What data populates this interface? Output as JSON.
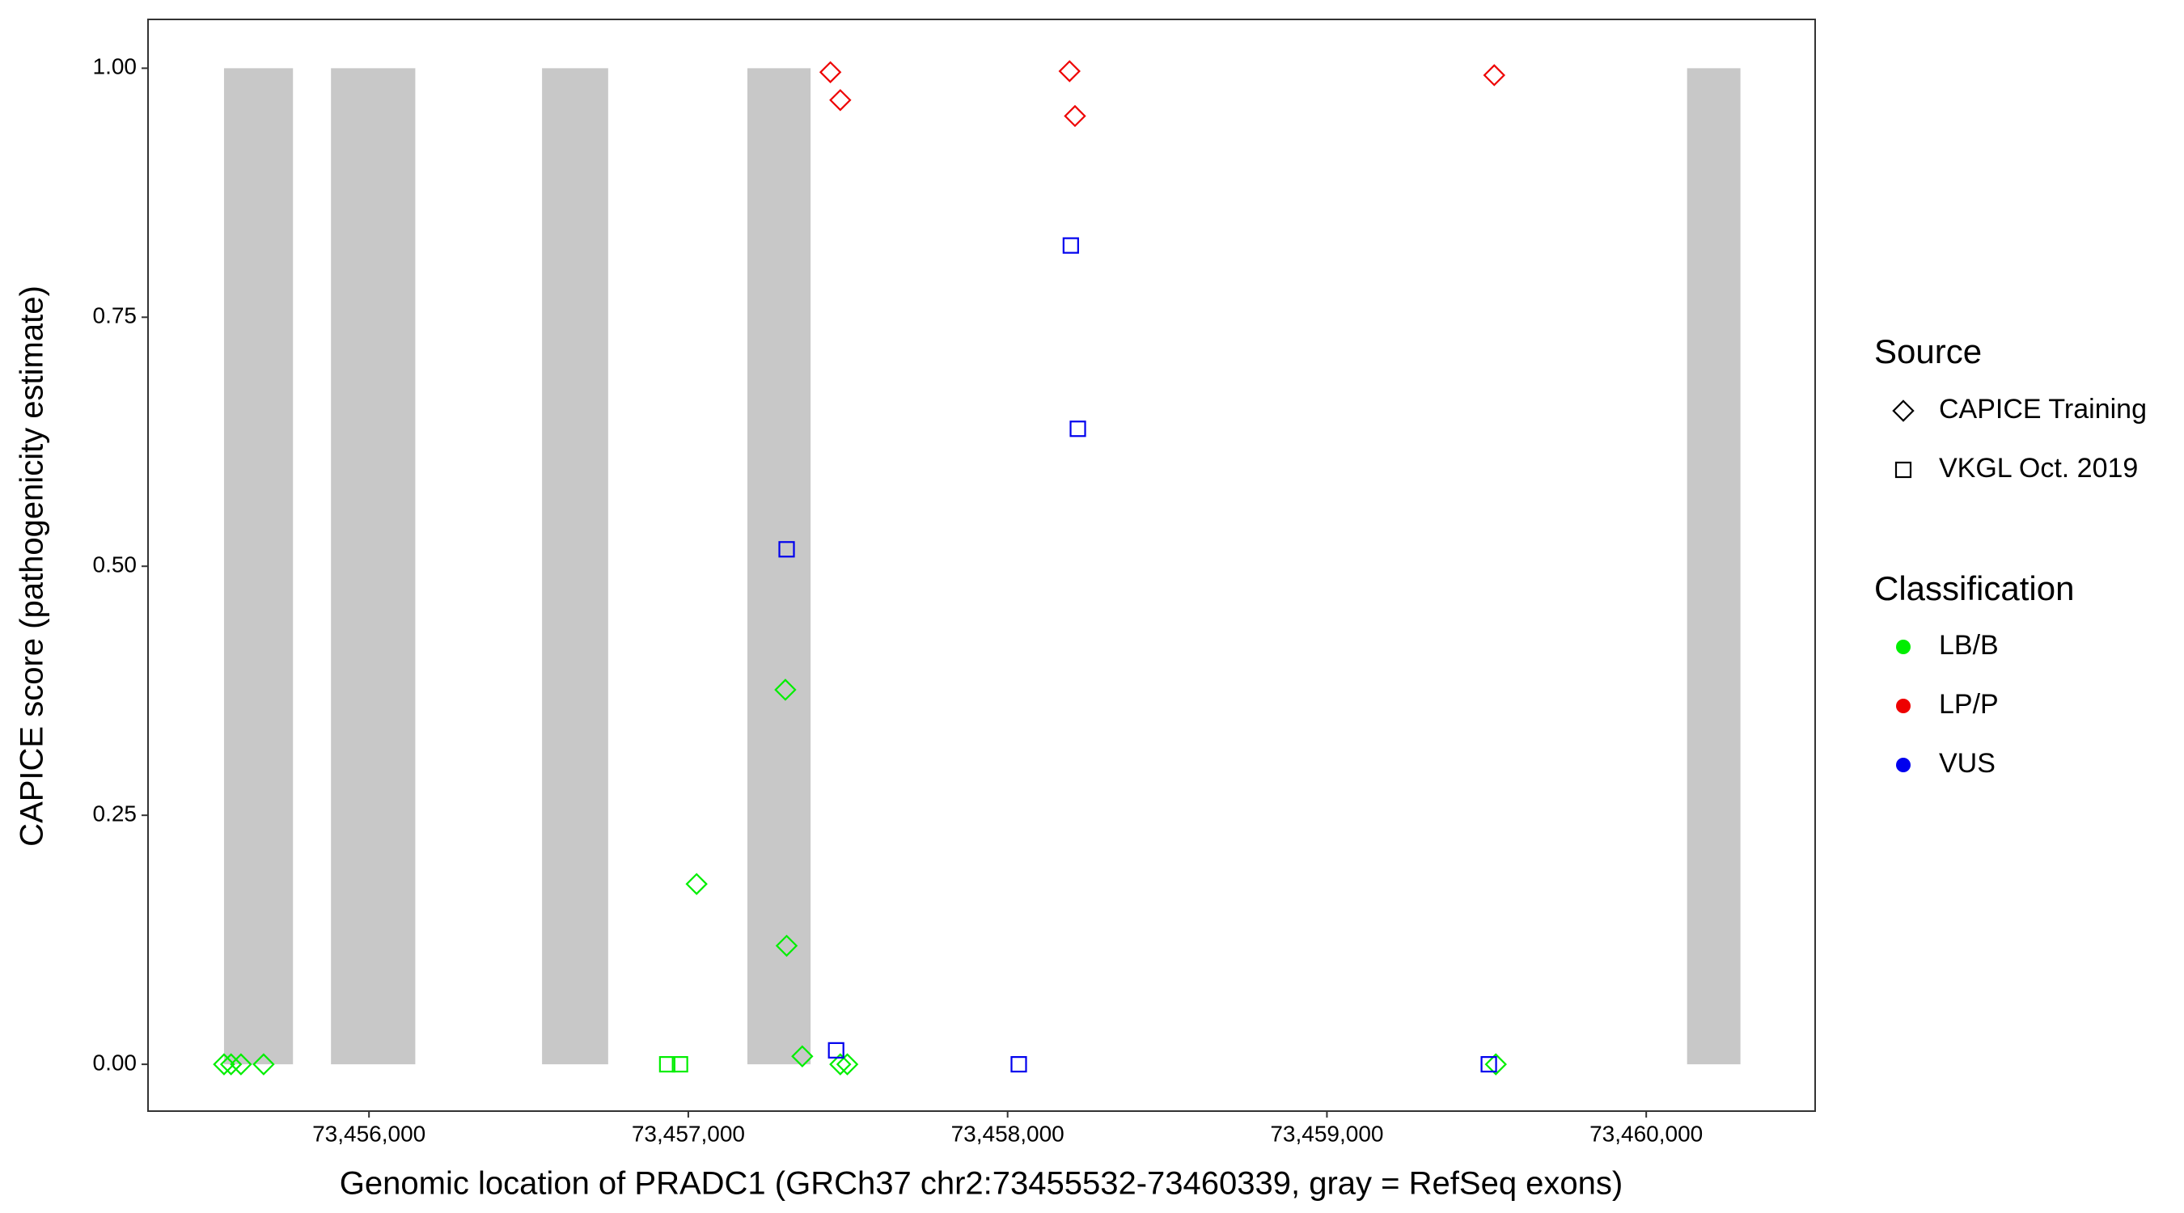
{
  "chart_data": {
    "type": "scatter",
    "x_label": "Genomic location of PRADC1 (GRCh37 chr2:73455532-73460339, gray = RefSeq exons)",
    "y_label": "CAPICE score (pathogenicity estimate)",
    "xlim": [
      73455308,
      73460529
    ],
    "ylim": [
      -0.047,
      1.049
    ],
    "xticks": [
      {
        "value": 73456000,
        "label": "73,456,000"
      },
      {
        "value": 73457000,
        "label": "73,457,000"
      },
      {
        "value": 73458000,
        "label": "73,458,000"
      },
      {
        "value": 73459000,
        "label": "73,459,000"
      },
      {
        "value": 73460000,
        "label": "73,460,000"
      }
    ],
    "yticks": [
      {
        "value": 0,
        "label": "0.00"
      },
      {
        "value": 0.25,
        "label": "0.25"
      },
      {
        "value": 0.5,
        "label": "0.50"
      },
      {
        "value": 0.75,
        "label": "0.75"
      },
      {
        "value": 1,
        "label": "1.00"
      }
    ],
    "grid": false,
    "exon_color": "#c8c8c8",
    "exon_y": [
      0,
      1
    ],
    "exons": [
      {
        "start": 73455546,
        "end": 73455762
      },
      {
        "start": 73455881,
        "end": 73456145
      },
      {
        "start": 73456542,
        "end": 73456749
      },
      {
        "start": 73457185,
        "end": 73457383
      },
      {
        "start": 73460128,
        "end": 73460295
      }
    ],
    "series": [
      {
        "shape": "diamond",
        "color": "#00ee00",
        "x": [
          73455546,
          73455568,
          73455599,
          73455670,
          73457026,
          73457304,
          73457308,
          73457357,
          73457476,
          73457498,
          73459529
        ],
        "values": [
          0,
          0,
          0,
          0,
          0.181,
          0.376,
          0.119,
          0.008,
          0,
          0,
          0
        ]
      },
      {
        "shape": "diamond",
        "color": "#ee0000",
        "x": [
          73457445,
          73457476,
          73458194,
          73458211,
          73459524
        ],
        "values": [
          0.996,
          0.968,
          0.997,
          0.952,
          0.993
        ]
      },
      {
        "shape": "square",
        "color": "#0000ee",
        "x": [
          73457308,
          73457463,
          73458035,
          73458198,
          73458220,
          73459507
        ],
        "values": [
          0.517,
          0.014,
          0,
          0.822,
          0.638,
          0
        ]
      },
      {
        "shape": "square",
        "color": "#00ee00",
        "x": [
          73456934,
          73456974
        ],
        "values": [
          0,
          0
        ]
      }
    ],
    "shape_legend": {
      "title": "Source",
      "items": [
        {
          "name": "CAPICE Training",
          "shape": "diamond"
        },
        {
          "name": "VKGL Oct. 2019",
          "shape": "square"
        }
      ]
    },
    "color_legend": {
      "title": "Classification",
      "items": [
        {
          "name": "LB/B",
          "color": "#00ee00"
        },
        {
          "name": "LP/P",
          "color": "#ee0000"
        },
        {
          "name": "VUS",
          "color": "#0000ee"
        }
      ]
    }
  }
}
